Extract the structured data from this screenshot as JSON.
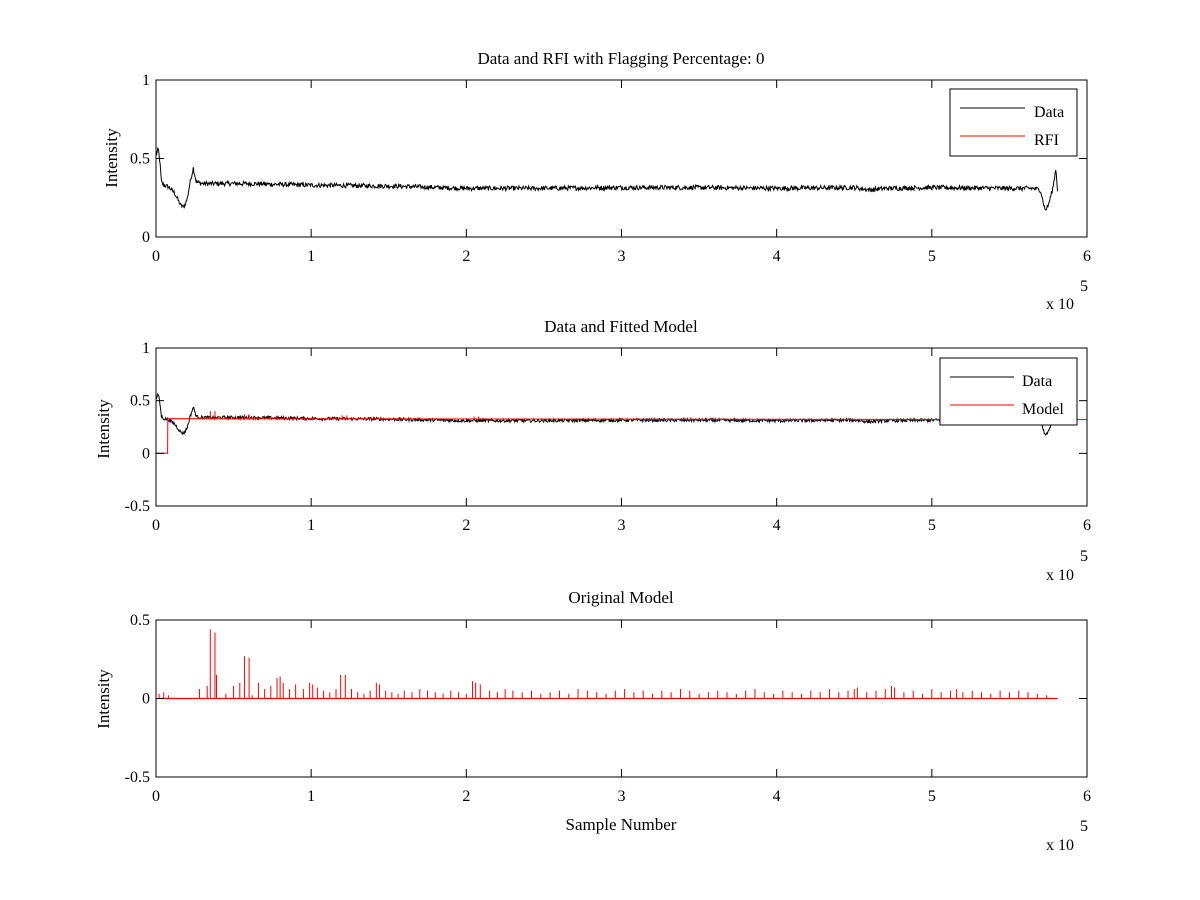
{
  "chart_data": [
    {
      "type": "line",
      "title": "Data and RFI with Flagging Percentage: 0",
      "xlabel": "",
      "ylabel": "Intensity",
      "xlim": [
        0,
        600000
      ],
      "ylim": [
        0,
        1
      ],
      "xticks": [
        0,
        1,
        2,
        3,
        4,
        5,
        6
      ],
      "xtick_labels": [
        "0",
        "1",
        "2",
        "3",
        "4",
        "5",
        "6"
      ],
      "yticks": [
        0,
        0.5,
        1
      ],
      "ytick_labels": [
        "0",
        "0.5",
        "1"
      ],
      "x_multiplier_text": "x 10",
      "x_multiplier_exponent": "5",
      "legend_position": "top-right",
      "grid": false,
      "series": [
        {
          "name": "Data",
          "color": "#000000",
          "x": [
            0,
            1500,
            2500,
            3500,
            5000,
            8000,
            12000,
            16000,
            18000,
            20000,
            22000,
            24000,
            26000,
            30000,
            40000,
            60000,
            80000,
            100000,
            150000,
            200000,
            250000,
            300000,
            350000,
            400000,
            450000,
            460000,
            470000,
            500000,
            550000,
            565000,
            570000,
            573000,
            575000,
            578000,
            580000,
            581000
          ],
          "y": [
            0.52,
            0.56,
            0.48,
            0.35,
            0.33,
            0.32,
            0.28,
            0.2,
            0.19,
            0.24,
            0.35,
            0.44,
            0.35,
            0.34,
            0.34,
            0.34,
            0.335,
            0.33,
            0.325,
            0.31,
            0.31,
            0.315,
            0.315,
            0.31,
            0.315,
            0.3,
            0.31,
            0.315,
            0.31,
            0.31,
            0.3,
            0.17,
            0.2,
            0.31,
            0.44,
            0.3
          ],
          "noise": 0.015
        },
        {
          "name": "RFI",
          "color": "#ff0000",
          "x": [],
          "y": []
        }
      ]
    },
    {
      "type": "line",
      "title": "Data and Fitted Model",
      "xlabel": "",
      "ylabel": "Intensity",
      "xlim": [
        0,
        600000
      ],
      "ylim": [
        -0.5,
        1
      ],
      "xticks": [
        0,
        1,
        2,
        3,
        4,
        5,
        6
      ],
      "xtick_labels": [
        "0",
        "1",
        "2",
        "3",
        "4",
        "5",
        "6"
      ],
      "yticks": [
        -0.5,
        0,
        0.5,
        1
      ],
      "ytick_labels": [
        "-0.5",
        "0",
        "0.5",
        "1"
      ],
      "x_multiplier_text": "x 10",
      "x_multiplier_exponent": "5",
      "legend_position": "top-right",
      "grid": false,
      "series": [
        {
          "name": "Data",
          "color": "#000000",
          "x": [
            0,
            1500,
            2500,
            3500,
            5000,
            8000,
            12000,
            16000,
            18000,
            20000,
            22000,
            24000,
            26000,
            30000,
            40000,
            60000,
            80000,
            100000,
            150000,
            200000,
            250000,
            300000,
            350000,
            400000,
            450000,
            460000,
            470000,
            500000,
            550000,
            565000,
            570000,
            573000,
            575000,
            578000,
            580000,
            581000
          ],
          "y": [
            0.52,
            0.56,
            0.48,
            0.35,
            0.33,
            0.32,
            0.28,
            0.2,
            0.19,
            0.24,
            0.35,
            0.44,
            0.35,
            0.34,
            0.34,
            0.34,
            0.335,
            0.33,
            0.325,
            0.31,
            0.31,
            0.315,
            0.315,
            0.31,
            0.315,
            0.3,
            0.31,
            0.315,
            0.31,
            0.31,
            0.3,
            0.17,
            0.2,
            0.31,
            0.44,
            0.3
          ],
          "noise": 0.015
        },
        {
          "name": "Model",
          "color": "#ff0000",
          "x": [
            0,
            7500,
            7600,
            600000
          ],
          "y": [
            0,
            0,
            0.33,
            0.32
          ],
          "spikes_x": [
            35000,
            38000,
            57000,
            60000,
            120000,
            123000,
            205000,
            208000
          ],
          "spikes_y": [
            0.4,
            0.4,
            0.37,
            0.37,
            0.36,
            0.36,
            0.35,
            0.35
          ]
        }
      ]
    },
    {
      "type": "line",
      "title": "Original Model",
      "xlabel": "Sample Number",
      "ylabel": "Intensity",
      "xlim": [
        0,
        600000
      ],
      "ylim": [
        -0.5,
        0.5
      ],
      "xticks": [
        0,
        1,
        2,
        3,
        4,
        5,
        6
      ],
      "xtick_labels": [
        "0",
        "1",
        "2",
        "3",
        "4",
        "5",
        "6"
      ],
      "yticks": [
        -0.5,
        0,
        0.5
      ],
      "ytick_labels": [
        "-0.5",
        "0",
        "0.5"
      ],
      "x_multiplier_text": "x 10",
      "x_multiplier_exponent": "5",
      "legend_position": "none",
      "grid": false,
      "series": [
        {
          "name": "",
          "color": "#ff0000",
          "baseline": 0,
          "x_end": 581000,
          "spikes_x": [
            2000,
            5000,
            8000,
            28000,
            33000,
            35000,
            38000,
            39000,
            45000,
            50000,
            54000,
            57000,
            60000,
            62000,
            66000,
            70000,
            74000,
            78000,
            80000,
            82000,
            86000,
            90000,
            95000,
            99000,
            101000,
            104000,
            108000,
            112000,
            116000,
            119000,
            122000,
            126000,
            130000,
            134000,
            138000,
            142000,
            144000,
            148000,
            152000,
            156000,
            160000,
            165000,
            170000,
            175000,
            180000,
            185000,
            190000,
            195000,
            200000,
            204000,
            206000,
            209000,
            215000,
            220000,
            225000,
            230000,
            236000,
            242000,
            248000,
            254000,
            260000,
            266000,
            272000,
            278000,
            284000,
            290000,
            296000,
            302000,
            308000,
            314000,
            320000,
            326000,
            332000,
            338000,
            344000,
            350000,
            356000,
            362000,
            368000,
            374000,
            380000,
            386000,
            392000,
            398000,
            404000,
            410000,
            416000,
            422000,
            428000,
            434000,
            440000,
            446000,
            450000,
            452000,
            458000,
            464000,
            470000,
            474000,
            476000,
            482000,
            488000,
            494000,
            500000,
            506000,
            512000,
            516000,
            520000,
            526000,
            532000,
            538000,
            544000,
            550000,
            556000,
            562000,
            568000,
            574000
          ],
          "spikes_y": [
            0.03,
            0.04,
            0.02,
            0.06,
            0.08,
            0.44,
            0.42,
            0.15,
            0.03,
            0.08,
            0.1,
            0.27,
            0.26,
            0.02,
            0.1,
            0.06,
            0.08,
            0.13,
            0.14,
            0.1,
            0.06,
            0.09,
            0.06,
            0.1,
            0.09,
            0.07,
            0.05,
            0.04,
            0.06,
            0.15,
            0.15,
            0.06,
            0.04,
            0.03,
            0.05,
            0.1,
            0.09,
            0.05,
            0.04,
            0.03,
            0.05,
            0.04,
            0.06,
            0.05,
            0.04,
            0.03,
            0.05,
            0.04,
            0.03,
            0.11,
            0.1,
            0.09,
            0.05,
            0.04,
            0.06,
            0.05,
            0.04,
            0.05,
            0.03,
            0.04,
            0.05,
            0.03,
            0.06,
            0.05,
            0.04,
            0.03,
            0.05,
            0.06,
            0.04,
            0.05,
            0.03,
            0.05,
            0.04,
            0.06,
            0.05,
            0.03,
            0.04,
            0.05,
            0.04,
            0.03,
            0.05,
            0.06,
            0.04,
            0.03,
            0.05,
            0.04,
            0.03,
            0.05,
            0.04,
            0.06,
            0.04,
            0.05,
            0.06,
            0.07,
            0.04,
            0.05,
            0.06,
            0.08,
            0.07,
            0.04,
            0.05,
            0.03,
            0.06,
            0.04,
            0.05,
            0.06,
            0.04,
            0.05,
            0.04,
            0.03,
            0.05,
            0.04,
            0.05,
            0.04,
            0.03,
            0.02
          ]
        }
      ]
    }
  ]
}
